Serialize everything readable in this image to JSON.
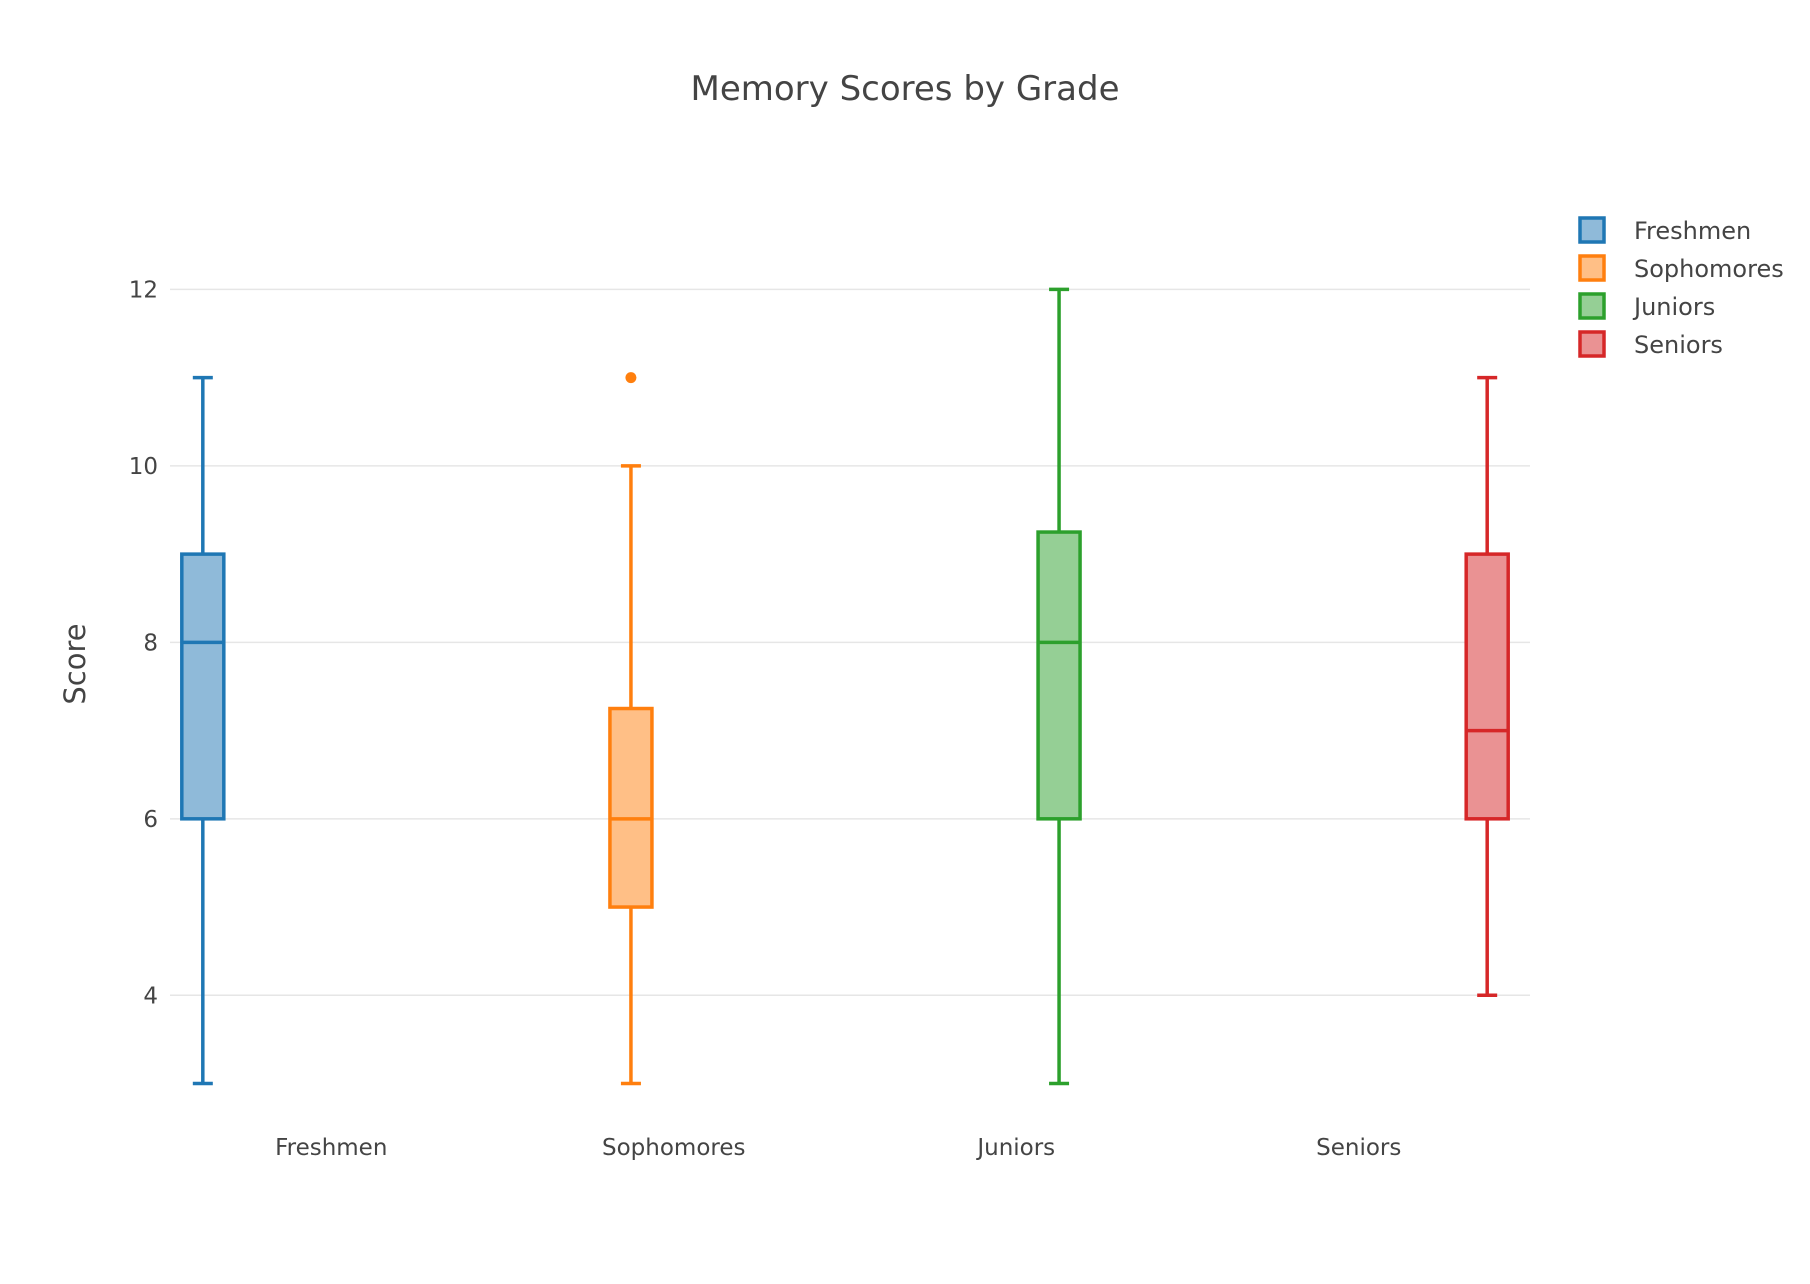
{
  "chart_data": {
    "type": "box",
    "title": "Memory Scores by Grade",
    "xlabel": "",
    "ylabel": "Score",
    "ylim": [
      2.7,
      12.9
    ],
    "yticks": [
      4,
      6,
      8,
      10,
      12
    ],
    "grid": true,
    "legend_position": "top-right",
    "categories": [
      "Freshmen",
      "Sophomores",
      "Juniors",
      "Seniors"
    ],
    "series": [
      {
        "name": "Freshmen",
        "color": "#1f77b4",
        "fill": "#8fbad9",
        "min": 3,
        "q1": 6,
        "median": 8,
        "q3": 9,
        "max": 11,
        "outliers": []
      },
      {
        "name": "Sophomores",
        "color": "#ff7f0e",
        "fill": "#ffbf86",
        "min": 3,
        "q1": 5,
        "median": 6,
        "q3": 7.25,
        "max": 10,
        "outliers": [
          11
        ]
      },
      {
        "name": "Juniors",
        "color": "#2ca02c",
        "fill": "#95cf95",
        "min": 3,
        "q1": 6,
        "median": 8,
        "q3": 9.25,
        "max": 12,
        "outliers": []
      },
      {
        "name": "Seniors",
        "color": "#d62728",
        "fill": "#ea9293",
        "min": 4,
        "q1": 6,
        "median": 7,
        "q3": 9,
        "max": 11,
        "outliers": []
      }
    ]
  }
}
